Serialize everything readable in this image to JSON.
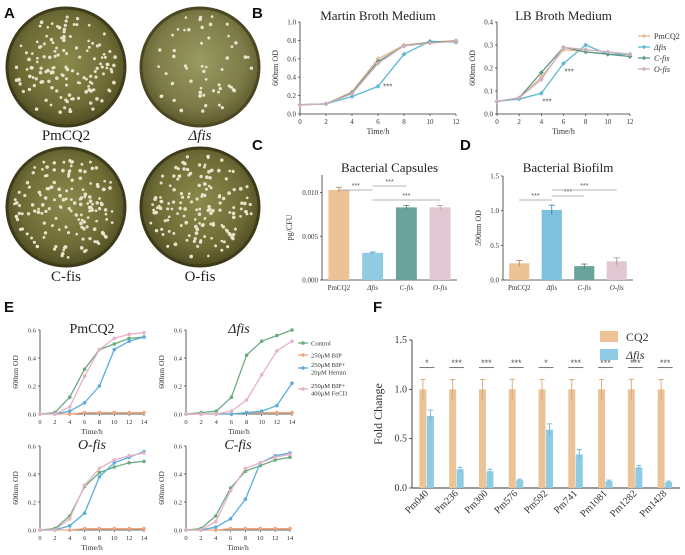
{
  "panel_letters": [
    "A",
    "B",
    "C",
    "D",
    "E",
    "F"
  ],
  "panelA": {
    "plates": [
      "PmCQ2",
      "Δfis",
      "C-fis",
      "O-fis"
    ]
  },
  "colors": {
    "PmCQ2": "#e8b98e",
    "dfis": "#5fb8d8",
    "Cfis": "#5a9a86",
    "Ofis": "#cfaeba",
    "control": "#6aac7e",
    "bip": "#f0a57c",
    "bip_hemin": "#5aaedc",
    "bip_fecl3": "#e8b1c6",
    "CQ2_bar": "#ecc397",
    "fis_bar": "#8fcbe3",
    "sig_line": "#9a9a9a"
  },
  "chart_data": [
    {
      "id": "B1",
      "type": "line",
      "title": "Martin Broth Medium",
      "xlabel": "Time/h",
      "ylabel": "600nm OD",
      "x": [
        0,
        2,
        4,
        6,
        8,
        10,
        12
      ],
      "xlim": [
        0,
        12
      ],
      "ylim": [
        0,
        1.0
      ],
      "yticks": [
        "0.0",
        "0.2",
        "0.4",
        "0.6",
        "0.8",
        "1.0"
      ],
      "xticks": [
        "0",
        "2",
        "4",
        "6",
        "8",
        "10",
        "12"
      ],
      "series": [
        {
          "name": "PmCQ2",
          "values": [
            0.1,
            0.11,
            0.24,
            0.6,
            0.75,
            0.78,
            0.8
          ]
        },
        {
          "name": "Δfis",
          "values": [
            0.1,
            0.11,
            0.19,
            0.3,
            0.65,
            0.79,
            0.78
          ]
        },
        {
          "name": "C-fis",
          "values": [
            0.1,
            0.11,
            0.23,
            0.57,
            0.74,
            0.78,
            0.79
          ]
        },
        {
          "name": "O-fis",
          "values": [
            0.1,
            0.11,
            0.22,
            0.55,
            0.74,
            0.77,
            0.79
          ]
        }
      ],
      "annotation": "***"
    },
    {
      "id": "B2",
      "type": "line",
      "title": "LB Broth Medium",
      "xlabel": "Time/h",
      "ylabel": "600nm OD",
      "x": [
        0,
        2,
        4,
        6,
        8,
        10,
        12
      ],
      "xlim": [
        0,
        12
      ],
      "ylim": [
        0,
        0.4
      ],
      "yticks": [
        "0.0",
        "0.1",
        "0.2",
        "0.3",
        "0.4"
      ],
      "xticks": [
        "0",
        "2",
        "4",
        "6",
        "8",
        "10",
        "12"
      ],
      "series": [
        {
          "name": "PmCQ2",
          "values": [
            0.055,
            0.07,
            0.16,
            0.28,
            0.27,
            0.26,
            0.25
          ]
        },
        {
          "name": "Δfis",
          "values": [
            0.055,
            0.065,
            0.09,
            0.22,
            0.3,
            0.26,
            0.26
          ]
        },
        {
          "name": "C-fis",
          "values": [
            0.055,
            0.07,
            0.18,
            0.29,
            0.27,
            0.26,
            0.25
          ]
        },
        {
          "name": "O-fis",
          "values": [
            0.055,
            0.07,
            0.15,
            0.29,
            0.28,
            0.27,
            0.26
          ]
        }
      ],
      "legend": [
        "PmCQ2",
        "Δfis",
        "C-fis",
        "O-fis"
      ],
      "legend_position": "right",
      "annotation": "***"
    },
    {
      "id": "C",
      "type": "bar",
      "title": "Bacterial Capsules",
      "ylabel": "pg/CFU",
      "categories": [
        "PmCQ2",
        "Δfis",
        "C-fis",
        "O-fis"
      ],
      "values": [
        0.0103,
        0.0031,
        0.0083,
        0.0083
      ],
      "errors": [
        0.0003,
        0.0001,
        0.0002,
        0.0002
      ],
      "ylim": [
        0,
        0.012
      ],
      "yticks": [
        "0.000",
        "0.005",
        "0.010"
      ],
      "significance": [
        "***",
        "***",
        "***"
      ]
    },
    {
      "id": "D",
      "type": "bar",
      "title": "Bacterial Biofilm",
      "ylabel": "590nm OD",
      "categories": [
        "PmCQ2",
        "Δfis",
        "C-fis",
        "O-fis"
      ],
      "values": [
        0.24,
        1.01,
        0.2,
        0.27
      ],
      "errors": [
        0.04,
        0.07,
        0.03,
        0.05
      ],
      "ylim": [
        0,
        1.5
      ],
      "yticks": [
        "0.0",
        "0.5",
        "1.0",
        "1.5"
      ],
      "significance": [
        "***",
        "***",
        "***"
      ]
    },
    {
      "id": "E1",
      "type": "line",
      "title": "PmCQ2",
      "xlabel": "Time/h",
      "ylabel": "600nm OD",
      "x": [
        0,
        2,
        4,
        6,
        8,
        10,
        12,
        14
      ],
      "xlim": [
        0,
        14
      ],
      "ylim": [
        0,
        0.6
      ],
      "yticks": [
        "0.0",
        "0.2",
        "0.4",
        "0.6"
      ],
      "xticks": [
        "0",
        "2",
        "4",
        "6",
        "8",
        "10",
        "12",
        "14"
      ],
      "series": [
        {
          "name": "Control",
          "values": [
            0.0,
            0.01,
            0.12,
            0.32,
            0.46,
            0.5,
            0.54,
            0.55
          ]
        },
        {
          "name": "250μM BIP",
          "values": [
            0.0,
            0.0,
            0.0,
            0.01,
            0.01,
            0.01,
            0.01,
            0.01
          ]
        },
        {
          "name": "250μM BIP+20μM Hemin",
          "values": [
            0.0,
            0.0,
            0.02,
            0.08,
            0.2,
            0.46,
            0.52,
            0.55
          ]
        },
        {
          "name": "250μM BIP+400μM FeCl3",
          "values": [
            0.0,
            0.0,
            0.05,
            0.27,
            0.46,
            0.54,
            0.57,
            0.58
          ]
        }
      ]
    },
    {
      "id": "E2",
      "type": "line",
      "title": "Δfis",
      "xlabel": "Time/h",
      "ylabel": "600nm OD",
      "x": [
        0,
        2,
        4,
        6,
        8,
        10,
        12,
        14
      ],
      "xlim": [
        0,
        14
      ],
      "ylim": [
        0,
        0.6
      ],
      "yticks": [
        "0.0",
        "0.2",
        "0.4",
        "0.6"
      ],
      "xticks": [
        "0",
        "2",
        "4",
        "6",
        "8",
        "10",
        "12",
        "14"
      ],
      "legend": [
        "Control",
        "250μM BIP",
        "250μM BIP+ 20μM Hemin",
        "250μM BIP+ 400μM FeCl3"
      ],
      "legend_position": "right",
      "series": [
        {
          "name": "Control",
          "values": [
            0.0,
            0.01,
            0.02,
            0.12,
            0.42,
            0.52,
            0.56,
            0.6
          ]
        },
        {
          "name": "250μM BIP",
          "values": [
            0.0,
            0.0,
            0.0,
            0.0,
            0.01,
            0.01,
            0.01,
            0.01
          ]
        },
        {
          "name": "250μM BIP+20μM Hemin",
          "values": [
            0.0,
            0.0,
            0.0,
            0.0,
            0.01,
            0.02,
            0.06,
            0.22
          ]
        },
        {
          "name": "250μM BIP+400μM FeCl3",
          "values": [
            0.0,
            0.0,
            0.0,
            0.02,
            0.1,
            0.28,
            0.45,
            0.52
          ]
        }
      ]
    },
    {
      "id": "E3",
      "type": "line",
      "title": "O-fis",
      "xlabel": "Time/h",
      "ylabel": "600nm OD",
      "x": [
        0,
        2,
        4,
        6,
        8,
        10,
        12,
        14
      ],
      "xlim": [
        0,
        14
      ],
      "ylim": [
        0,
        0.6
      ],
      "yticks": [
        "0.0",
        "0.2",
        "0.4",
        "0.6"
      ],
      "xticks": [
        "0",
        "2",
        "4",
        "6",
        "8",
        "10",
        "12",
        "14"
      ],
      "series": [
        {
          "name": "Control",
          "values": [
            0.0,
            0.01,
            0.1,
            0.31,
            0.41,
            0.45,
            0.48,
            0.49
          ]
        },
        {
          "name": "250μM BIP",
          "values": [
            0.0,
            0.0,
            0.0,
            0.01,
            0.01,
            0.01,
            0.01,
            0.01
          ]
        },
        {
          "name": "250μM BIP+20μM Hemin",
          "values": [
            0.0,
            0.0,
            0.03,
            0.12,
            0.38,
            0.48,
            0.52,
            0.56
          ]
        },
        {
          "name": "250μM BIP+400μM FeCl3",
          "values": [
            0.0,
            0.0,
            0.08,
            0.32,
            0.44,
            0.5,
            0.53,
            0.55
          ]
        }
      ]
    },
    {
      "id": "E4",
      "type": "line",
      "title": "C-fis",
      "xlabel": "Time/h",
      "ylabel": "600nm OD",
      "x": [
        0,
        2,
        4,
        6,
        8,
        10,
        12,
        14
      ],
      "xlim": [
        0,
        14
      ],
      "ylim": [
        0,
        0.6
      ],
      "yticks": [
        "0.0",
        "0.2",
        "0.4",
        "0.6"
      ],
      "xticks": [
        "0",
        "2",
        "4",
        "6",
        "8",
        "10",
        "12",
        "14"
      ],
      "series": [
        {
          "name": "Control",
          "values": [
            0.0,
            0.01,
            0.1,
            0.3,
            0.42,
            0.46,
            0.5,
            0.52
          ]
        },
        {
          "name": "250μM BIP",
          "values": [
            0.0,
            0.0,
            0.0,
            0.01,
            0.01,
            0.01,
            0.01,
            0.01
          ]
        },
        {
          "name": "250μM BIP+20μM Hemin",
          "values": [
            0.0,
            0.0,
            0.02,
            0.08,
            0.22,
            0.48,
            0.53,
            0.55
          ]
        },
        {
          "name": "250μM BIP+400μM FeCl3",
          "values": [
            0.0,
            0.0,
            0.06,
            0.28,
            0.44,
            0.48,
            0.52,
            0.54
          ]
        }
      ]
    },
    {
      "id": "F",
      "type": "bar",
      "ylabel": "Fold Change",
      "categories": [
        "Pm040",
        "Pm236",
        "Pm300",
        "Pm576",
        "Pm592",
        "Pm741",
        "Pm1081",
        "Pm1282",
        "Pm1428"
      ],
      "series": [
        {
          "name": "CQ2",
          "values": [
            1.0,
            1.0,
            1.0,
            1.0,
            1.0,
            1.0,
            1.0,
            1.0,
            1.0
          ],
          "errors": [
            0.1,
            0.1,
            0.1,
            0.1,
            0.1,
            0.1,
            0.1,
            0.1,
            0.1
          ]
        },
        {
          "name": "Δfis",
          "values": [
            0.73,
            0.19,
            0.17,
            0.08,
            0.59,
            0.34,
            0.07,
            0.21,
            0.06
          ],
          "errors": [
            0.06,
            0.02,
            0.02,
            0.01,
            0.06,
            0.05,
            0.01,
            0.02,
            0.01
          ]
        }
      ],
      "ylim": [
        0,
        1.5
      ],
      "yticks": [
        "0.0",
        "0.5",
        "1.0",
        "1.5"
      ],
      "significance": [
        "*",
        "***",
        "***",
        "***",
        "*",
        "***",
        "***",
        "***",
        "***"
      ],
      "legend": [
        "CQ2",
        "Δfis"
      ],
      "legend_position": "top-right"
    }
  ]
}
